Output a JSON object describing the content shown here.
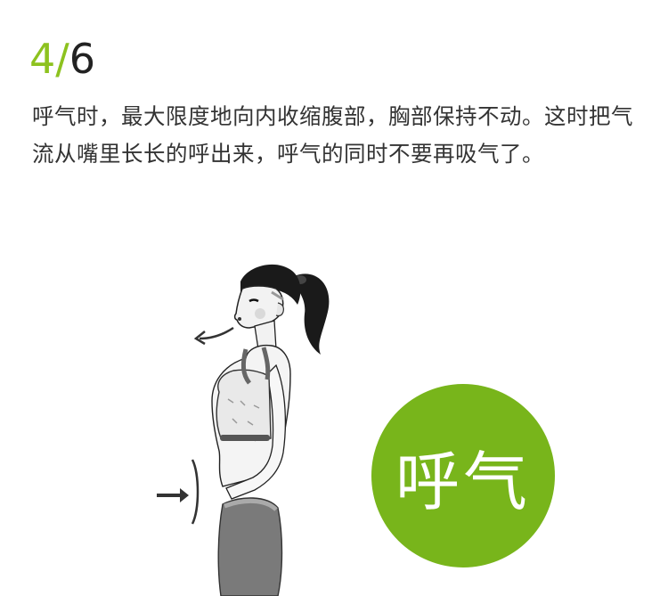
{
  "step": {
    "current": "4",
    "separator": "/",
    "total": "6"
  },
  "description": "呼气时，最大限度地向内收缩腹部，胸部保持不动。这时把气流从嘴里长长的呼出来，呼气的同时不要再吸气了。",
  "badge": {
    "label": "呼气",
    "color": "#78b51b"
  },
  "accent_color": "#8dc21f",
  "illustration": {
    "subject": "woman-exhaling",
    "icons": [
      "exhale-arrow-icon",
      "abdomen-push-arrow-icon"
    ]
  }
}
